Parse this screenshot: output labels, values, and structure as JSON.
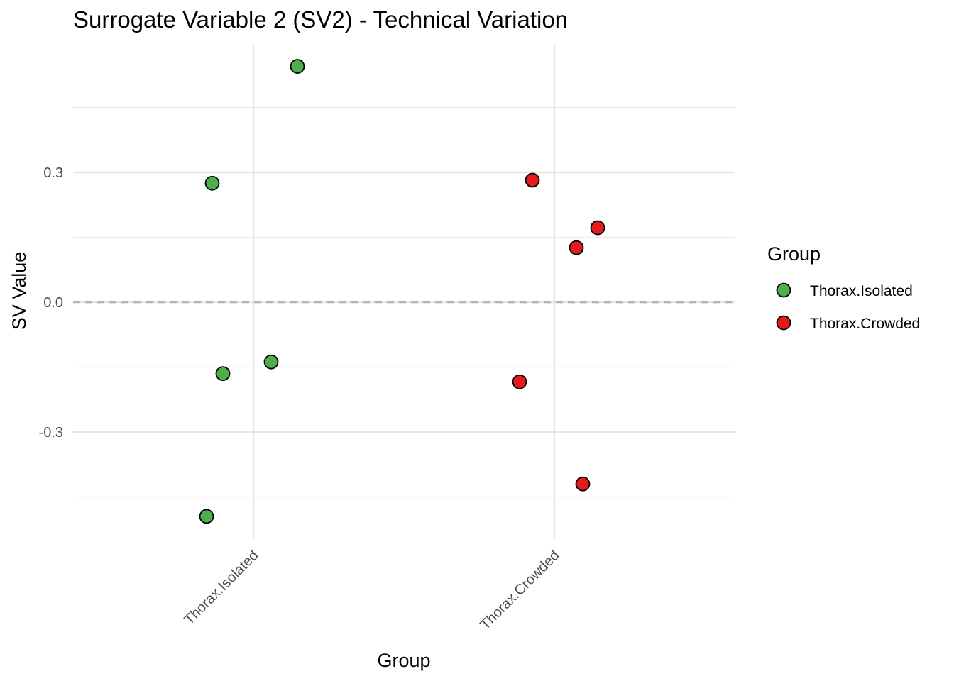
{
  "chart_data": {
    "type": "scatter",
    "title": "Surrogate Variable 2 (SV2) - Technical Variation",
    "xlabel": "Group",
    "ylabel": "SV Value",
    "categories": [
      "Thorax.Isolated",
      "Thorax.Crowded"
    ],
    "y_ticks": [
      {
        "value": 0.3,
        "label": "0.3"
      },
      {
        "value": 0.0,
        "label": "0.0"
      },
      {
        "value": -0.3,
        "label": "-0.3"
      }
    ],
    "ylim": [
      -0.545,
      0.6
    ],
    "grid": true,
    "reference_line": {
      "y": 0.0,
      "style": "dashed"
    },
    "legend": {
      "title": "Group",
      "placement": "right",
      "entries": [
        {
          "label": "Thorax.Isolated",
          "color": "#4DAF4A"
        },
        {
          "label": "Thorax.Crowded",
          "color": "#E41A1C"
        }
      ]
    },
    "series": [
      {
        "name": "Thorax.Isolated",
        "color": "#4DAF4A",
        "points": [
          {
            "x": "Thorax.Isolated",
            "y": 0.545
          },
          {
            "x": "Thorax.Isolated",
            "y": 0.275
          },
          {
            "x": "Thorax.Isolated",
            "y": -0.138
          },
          {
            "x": "Thorax.Isolated",
            "y": -0.165
          },
          {
            "x": "Thorax.Isolated",
            "y": -0.495
          }
        ]
      },
      {
        "name": "Thorax.Crowded",
        "color": "#E41A1C",
        "points": [
          {
            "x": "Thorax.Crowded",
            "y": 0.282
          },
          {
            "x": "Thorax.Crowded",
            "y": 0.172
          },
          {
            "x": "Thorax.Crowded",
            "y": 0.126
          },
          {
            "x": "Thorax.Crowded",
            "y": -0.184
          },
          {
            "x": "Thorax.Crowded",
            "y": -0.42
          }
        ]
      }
    ]
  }
}
